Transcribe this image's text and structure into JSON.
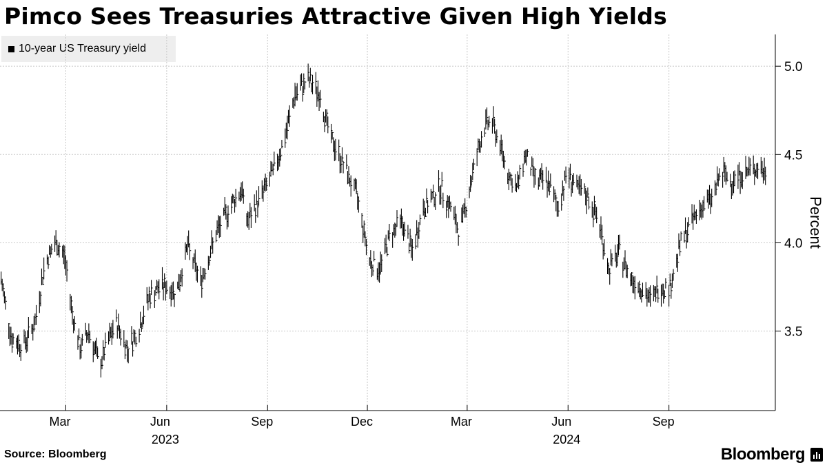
{
  "title": "Pimco Sees Treasuries Attractive Given High Yields",
  "source": "Source: Bloomberg",
  "brand": "Bloomberg",
  "colors": {
    "line": "#000000",
    "grid": "#c8c8c8",
    "legend_bg": "#eeeeee"
  },
  "chart_data": {
    "type": "line",
    "style": "candlestick-like daily bars",
    "title": "Pimco Sees Treasuries Attractive Given High Yields",
    "legend": [
      "10-year US Treasury yield"
    ],
    "ylabel": "Percent",
    "xlabel": "",
    "ylim": [
      3.05,
      5.18
    ],
    "yticks": [
      3.5,
      4.0,
      4.5,
      5.0
    ],
    "ytick_labels": [
      "3.5",
      "4.0",
      "4.5",
      "5.0"
    ],
    "x_range_days": [
      -1,
      706
    ],
    "xticks": [
      {
        "day": 59,
        "label": "Mar"
      },
      {
        "day": 151,
        "label": "Jun"
      },
      {
        "day": 243,
        "label": "Sep"
      },
      {
        "day": 334,
        "label": "Dec"
      },
      {
        "day": 425,
        "label": "Mar"
      },
      {
        "day": 517,
        "label": "Jun"
      },
      {
        "day": 609,
        "label": "Sep"
      }
    ],
    "year_labels": [
      {
        "day": 151,
        "label": "2023"
      },
      {
        "day": 517,
        "label": "2024"
      }
    ],
    "grid": true,
    "series": [
      {
        "name": "10-year US Treasury yield",
        "x": [
          0,
          10,
          20,
          31,
          40,
          50,
          58,
          65,
          72,
          80,
          90,
          95,
          105,
          115,
          125,
          135,
          147,
          160,
          170,
          182,
          196,
          210,
          219,
          225,
          235,
          248,
          259,
          268,
          280,
          290,
          300,
          312,
          325,
          336,
          345,
          355,
          365,
          375,
          385,
          393,
          400,
          410,
          418,
          425,
          432,
          440,
          447,
          455,
          462,
          470,
          478,
          488,
          498,
          508,
          516,
          526,
          536,
          546,
          554,
          564,
          574,
          584,
          592,
          600,
          610,
          620,
          628,
          638,
          648,
          657,
          665,
          672,
          680,
          690,
          695,
          699
        ],
        "values": [
          3.79,
          3.45,
          3.42,
          3.55,
          3.89,
          4.0,
          3.92,
          3.6,
          3.4,
          3.5,
          3.3,
          3.4,
          3.55,
          3.4,
          3.5,
          3.7,
          3.76,
          3.72,
          3.98,
          3.78,
          4.05,
          4.22,
          4.3,
          4.12,
          4.24,
          4.4,
          4.6,
          4.84,
          4.92,
          4.85,
          4.6,
          4.45,
          4.25,
          3.9,
          3.85,
          4.05,
          4.12,
          3.95,
          4.2,
          4.25,
          4.32,
          4.2,
          4.05,
          4.25,
          4.45,
          4.65,
          4.7,
          4.55,
          4.4,
          4.3,
          4.5,
          4.35,
          4.35,
          4.2,
          4.4,
          4.3,
          4.25,
          4.1,
          3.85,
          3.95,
          3.8,
          3.75,
          3.67,
          3.75,
          3.75,
          4.0,
          4.1,
          4.2,
          4.25,
          4.4,
          4.35,
          4.38,
          4.4,
          4.43,
          4.4,
          4.4
        ]
      }
    ]
  }
}
